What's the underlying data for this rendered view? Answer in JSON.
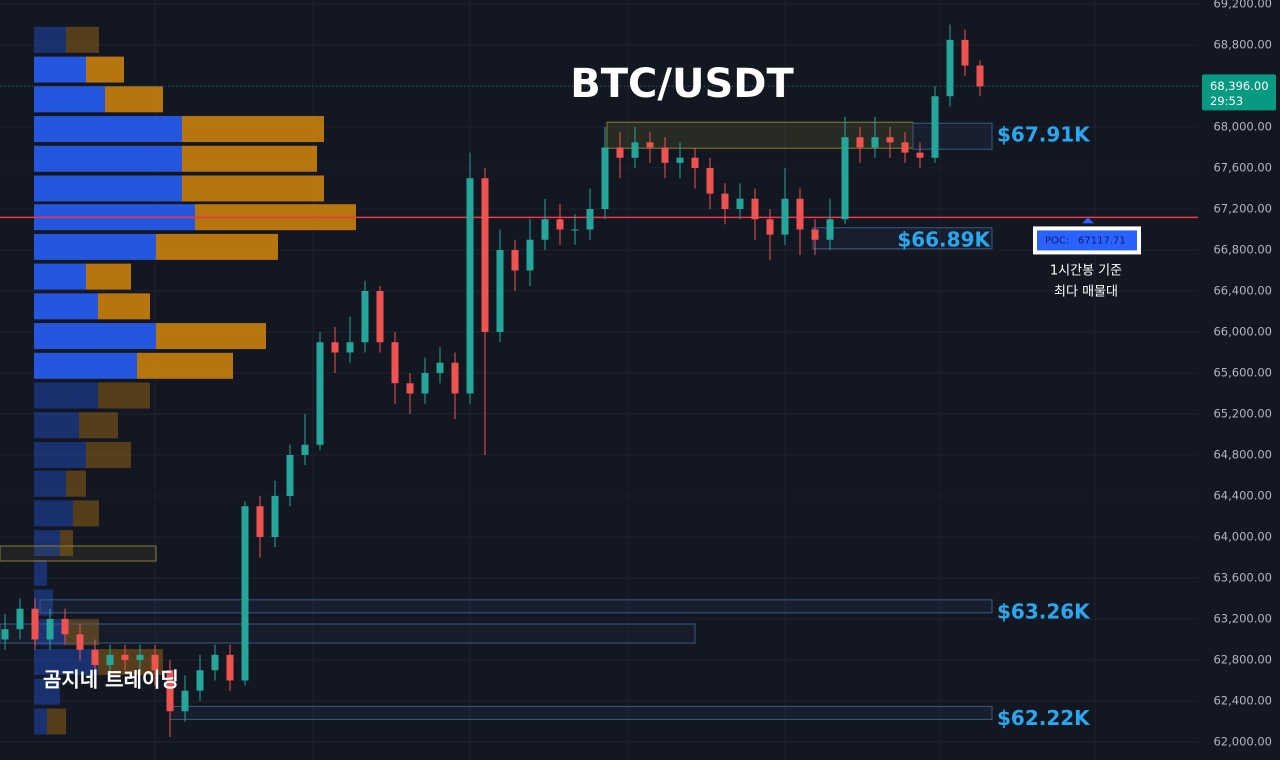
{
  "chart_data": {
    "type": "candlestick",
    "title": "BTC/USDT",
    "watermark": "곰지네 트레이딩",
    "open": [
      63000,
      63100,
      63300,
      63000,
      63200,
      63050,
      62900,
      62750,
      62850,
      62800,
      62850,
      62700,
      62300,
      62500,
      62700,
      62850,
      62600,
      64300,
      64000,
      64400,
      64800,
      64900,
      65900,
      65800,
      65900,
      66400,
      65900,
      65500,
      65400,
      65600,
      65700,
      65400,
      67500,
      66000,
      66800,
      66600,
      66900,
      67100,
      67000,
      67000,
      67200,
      67800,
      67700,
      67850,
      67800,
      67650,
      67700,
      67600,
      67350,
      67200,
      67300,
      67100,
      66950,
      67300,
      67000,
      66900,
      67100,
      67900,
      67800,
      67900,
      67850,
      67750,
      67700,
      68300,
      68850,
      68600
    ],
    "high": [
      63250,
      63400,
      63400,
      63300,
      63300,
      63150,
      63000,
      62950,
      62950,
      62950,
      62950,
      62800,
      62650,
      62850,
      62950,
      62950,
      64350,
      64400,
      64550,
      64900,
      65200,
      66000,
      66050,
      66150,
      66500,
      66450,
      66000,
      65600,
      65750,
      65850,
      65800,
      67750,
      67600,
      67000,
      66900,
      67100,
      67300,
      67250,
      67150,
      67400,
      68000,
      67950,
      68000,
      67950,
      67900,
      67850,
      67800,
      67700,
      67450,
      67450,
      67400,
      67200,
      67600,
      67400,
      67100,
      67300,
      68100,
      68000,
      68100,
      68000,
      67950,
      67850,
      68400,
      69000,
      68950,
      68650
    ],
    "low": [
      62900,
      63000,
      62900,
      62900,
      62950,
      62800,
      62650,
      62650,
      62700,
      62700,
      62550,
      62050,
      62200,
      62400,
      62600,
      62500,
      62550,
      63800,
      63900,
      64300,
      64700,
      64850,
      65600,
      65700,
      65800,
      65800,
      65300,
      65200,
      65300,
      65500,
      65150,
      65300,
      64800,
      65900,
      66400,
      66450,
      66800,
      66850,
      66850,
      66900,
      67100,
      67500,
      67600,
      67650,
      67500,
      67500,
      67400,
      67200,
      67050,
      67100,
      66900,
      66700,
      66850,
      66750,
      66750,
      66800,
      67050,
      67650,
      67700,
      67700,
      67650,
      67600,
      67650,
      68200,
      68500,
      68300
    ],
    "close": [
      63100,
      63300,
      63000,
      63200,
      63050,
      62900,
      62750,
      62850,
      62800,
      62850,
      62700,
      62300,
      62500,
      62700,
      62850,
      62600,
      64300,
      64000,
      64400,
      64800,
      64900,
      65900,
      65800,
      65900,
      66400,
      65900,
      65500,
      65400,
      65600,
      65700,
      65400,
      67500,
      66000,
      66800,
      66600,
      66900,
      67100,
      67000,
      67000,
      67200,
      67800,
      67700,
      67850,
      67800,
      67650,
      67700,
      67600,
      67350,
      67200,
      67300,
      67100,
      66950,
      67300,
      67000,
      66900,
      67100,
      67900,
      67800,
      67900,
      67850,
      67750,
      67700,
      68300,
      68850,
      68600,
      68396
    ],
    "up_color": "#26a69a",
    "down_color": "#ef5350",
    "ylim": [
      61824,
      69239
    ],
    "yticks": [
      {
        "value": 62000,
        "label": "62,000.00"
      },
      {
        "value": 62400,
        "label": "62,400.00"
      },
      {
        "value": 62800,
        "label": "62,800.00"
      },
      {
        "value": 63200,
        "label": "63,200.00"
      },
      {
        "value": 63600,
        "label": "63,600.00"
      },
      {
        "value": 64000,
        "label": "64,000.00"
      },
      {
        "value": 64400,
        "label": "64,400.00"
      },
      {
        "value": 64800,
        "label": "64,800.00"
      },
      {
        "value": 65200,
        "label": "65,200.00"
      },
      {
        "value": 65600,
        "label": "65,600.00"
      },
      {
        "value": 66000,
        "label": "66,000.00"
      },
      {
        "value": 66400,
        "label": "66,400.00"
      },
      {
        "value": 66800,
        "label": "66,800.00"
      },
      {
        "value": 67200,
        "label": "67,200.00"
      },
      {
        "value": 67600,
        "label": "67,600.00"
      },
      {
        "value": 68000,
        "label": "68,000.00"
      },
      {
        "value": 68400,
        "label": "68,400.00"
      },
      {
        "value": 68800,
        "label": "68,800.00"
      },
      {
        "value": 69200,
        "label": "69,200.00"
      }
    ],
    "grid": true,
    "volume_profile": {
      "price": [
        68850,
        68560,
        68270,
        67980,
        67690,
        67400,
        67120,
        66830,
        66540,
        66250,
        65960,
        65670,
        65380,
        65090,
        64800,
        64520,
        64230,
        63940,
        63650,
        63360,
        63070,
        62780,
        62490,
        62200
      ],
      "buy": [
        32,
        52,
        71,
        148,
        148,
        148,
        161,
        122,
        52,
        64,
        122,
        103,
        64,
        45,
        52,
        32,
        39,
        26,
        13,
        19,
        32,
        64,
        26,
        13
      ],
      "sell": [
        33,
        38,
        58,
        142,
        135,
        142,
        161,
        122,
        45,
        52,
        110,
        96,
        52,
        39,
        45,
        20,
        26,
        13,
        0,
        0,
        33,
        65,
        0,
        19
      ],
      "buy_color": "#2962ff",
      "sell_color": "#d4860b"
    },
    "levels": [
      {
        "label": "$67.91K",
        "value": 67910
      },
      {
        "label": "$66.89K",
        "value": 66890
      },
      {
        "label": "$63.26K",
        "value": 63260
      },
      {
        "label": "$62.22K",
        "value": 62220
      }
    ],
    "poc": {
      "label": "POC:",
      "value": 67117.71,
      "color": "#f23645"
    },
    "annotation": [
      "1시간봉 기준",
      "최다 매물대"
    ],
    "current_price": {
      "value": 68396,
      "label": "68,396.00",
      "countdown": "29:53"
    }
  }
}
